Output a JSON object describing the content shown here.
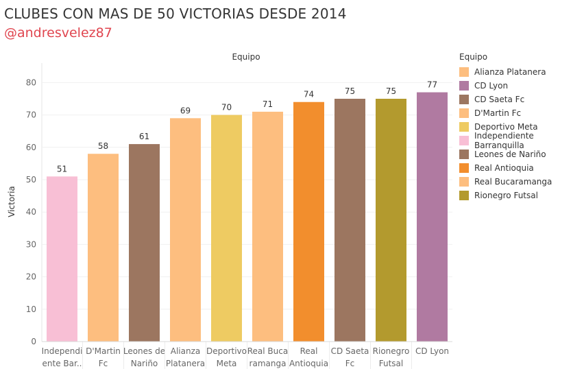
{
  "title": "CLUBES CON MAS DE 50 VICTORIAS DESDE 2014",
  "subtitle": "@andresvelez87",
  "chart_data": {
    "type": "bar",
    "column_header": "Equipo",
    "ylabel": "Victoria",
    "ylim": [
      0,
      85
    ],
    "yticks": [
      0,
      10,
      20,
      30,
      40,
      50,
      60,
      70,
      80
    ],
    "grid": true,
    "categories": [
      {
        "label": [
          "Independi",
          "ente Bar.."
        ],
        "value": 51,
        "color": "#f8bfd5"
      },
      {
        "label": [
          "D'Martin",
          "Fc"
        ],
        "value": 58,
        "color": "#fdbe7f"
      },
      {
        "label": [
          "Leones de",
          "Nariño"
        ],
        "value": 61,
        "color": "#9c7660"
      },
      {
        "label": [
          "Alianza",
          "Platanera"
        ],
        "value": 69,
        "color": "#fdbe7f"
      },
      {
        "label": [
          "Deportivo",
          "Meta"
        ],
        "value": 70,
        "color": "#eecb62"
      },
      {
        "label": [
          "Real Buca",
          "ramanga"
        ],
        "value": 71,
        "color": "#fdbe7f"
      },
      {
        "label": [
          "Real",
          "Antioquia"
        ],
        "value": 74,
        "color": "#f28e2d"
      },
      {
        "label": [
          "CD Saeta",
          "Fc"
        ],
        "value": 75,
        "color": "#9c7660"
      },
      {
        "label": [
          "Rionegro",
          "Futsal"
        ],
        "value": 75,
        "color": "#b39a2e"
      },
      {
        "label": [
          "CD Lyon"
        ],
        "value": 77,
        "color": "#b07aa1"
      }
    ]
  },
  "legend": {
    "title": "Equipo",
    "placement": "right",
    "items": [
      {
        "label": "Alianza Platanera",
        "color": "#fdbe7f"
      },
      {
        "label": "CD Lyon",
        "color": "#b07aa1"
      },
      {
        "label": "CD Saeta Fc",
        "color": "#9c7660"
      },
      {
        "label": "D'Martin Fc",
        "color": "#fdbe7f"
      },
      {
        "label": "Deportivo Meta",
        "color": "#eecb62"
      },
      {
        "label": "Independiente Barranquilla",
        "color": "#f8bfd5"
      },
      {
        "label": "Leones de Nariño",
        "color": "#9c7660"
      },
      {
        "label": "Real Antioquia",
        "color": "#f28e2d"
      },
      {
        "label": "Real Bucaramanga",
        "color": "#fdbe7f"
      },
      {
        "label": "Rionegro Futsal",
        "color": "#b39a2e"
      }
    ]
  }
}
